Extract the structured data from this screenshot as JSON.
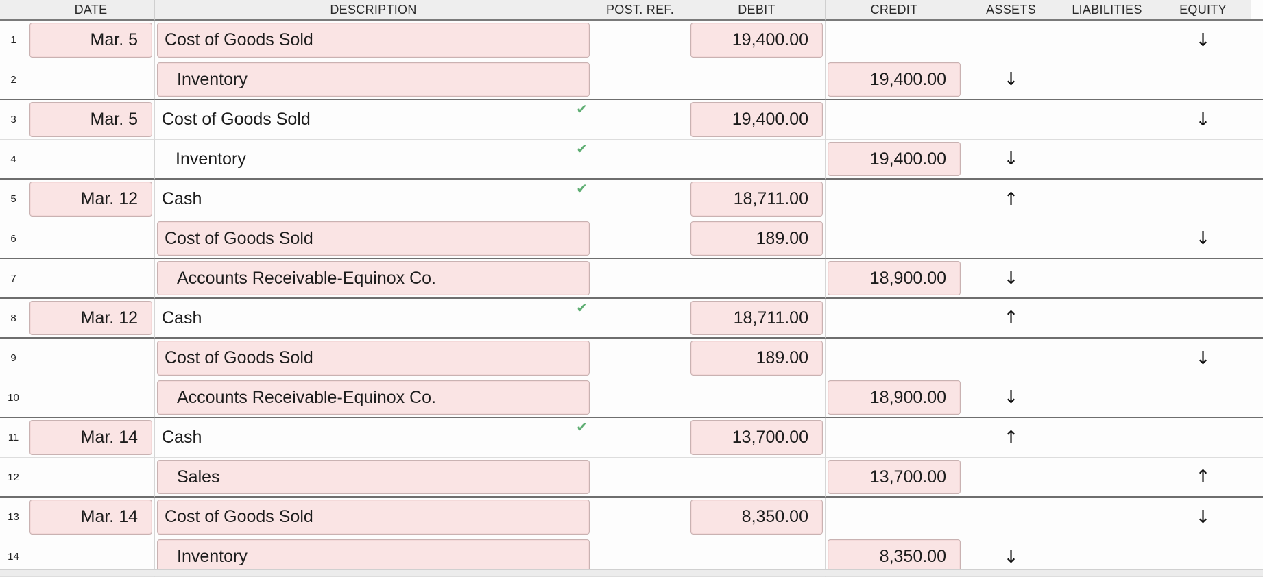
{
  "columns": [
    "",
    "DATE",
    "DESCRIPTION",
    "POST. REF.",
    "DEBIT",
    "CREDIT",
    "ASSETS",
    "LIABILITIES",
    "EQUITY",
    ""
  ],
  "rows": [
    {
      "num": "1",
      "date": "Mar. 5",
      "desc": "Cost of Goods Sold",
      "indent": false,
      "desc_input": true,
      "check": "",
      "debit": "19,400.00",
      "credit": "",
      "assets": "",
      "liabilities": "",
      "equity": "↓",
      "sep": false
    },
    {
      "num": "2",
      "date": "",
      "desc": "Inventory",
      "indent": true,
      "desc_input": true,
      "check": "",
      "debit": "",
      "credit": "19,400.00",
      "assets": "↓",
      "liabilities": "",
      "equity": "",
      "sep": true
    },
    {
      "num": "3",
      "date": "Mar. 5",
      "desc": "Cost of Goods Sold",
      "indent": false,
      "desc_input": false,
      "check": "✔",
      "debit": "19,400.00",
      "credit": "",
      "assets": "",
      "liabilities": "",
      "equity": "↓",
      "sep": false
    },
    {
      "num": "4",
      "date": "",
      "desc": "Inventory",
      "indent": true,
      "desc_input": false,
      "check": "✔",
      "debit": "",
      "credit": "19,400.00",
      "assets": "↓",
      "liabilities": "",
      "equity": "",
      "sep": true
    },
    {
      "num": "5",
      "date": "Mar. 12",
      "desc": "Cash",
      "indent": false,
      "desc_input": false,
      "check": "✔",
      "debit": "18,711.00",
      "credit": "",
      "assets": "↑",
      "liabilities": "",
      "equity": "",
      "sep": false
    },
    {
      "num": "6",
      "date": "",
      "desc": "Cost of Goods Sold",
      "indent": false,
      "desc_input": true,
      "check": "",
      "debit": "189.00",
      "credit": "",
      "assets": "",
      "liabilities": "",
      "equity": "↓",
      "sep": true
    },
    {
      "num": "7",
      "date": "",
      "desc": "Accounts Receivable-Equinox Co.",
      "indent": true,
      "desc_input": true,
      "check": "",
      "debit": "",
      "credit": "18,900.00",
      "assets": "↓",
      "liabilities": "",
      "equity": "",
      "sep": true
    },
    {
      "num": "8",
      "date": "Mar. 12",
      "desc": "Cash",
      "indent": false,
      "desc_input": false,
      "check": "✔",
      "debit": "18,711.00",
      "credit": "",
      "assets": "↑",
      "liabilities": "",
      "equity": "",
      "sep": true
    },
    {
      "num": "9",
      "date": "",
      "desc": "Cost of Goods Sold",
      "indent": false,
      "desc_input": true,
      "check": "",
      "debit": "189.00",
      "credit": "",
      "assets": "",
      "liabilities": "",
      "equity": "↓",
      "sep": false
    },
    {
      "num": "10",
      "date": "",
      "desc": "Accounts Receivable-Equinox Co.",
      "indent": true,
      "desc_input": true,
      "check": "",
      "debit": "",
      "credit": "18,900.00",
      "assets": "↓",
      "liabilities": "",
      "equity": "",
      "sep": true
    },
    {
      "num": "11",
      "date": "Mar. 14",
      "desc": "Cash",
      "indent": false,
      "desc_input": false,
      "check": "✔",
      "debit": "13,700.00",
      "credit": "",
      "assets": "↑",
      "liabilities": "",
      "equity": "",
      "sep": false
    },
    {
      "num": "12",
      "date": "",
      "desc": "Sales",
      "indent": true,
      "desc_input": true,
      "check": "",
      "debit": "",
      "credit": "13,700.00",
      "assets": "",
      "liabilities": "",
      "equity": "↑",
      "sep": true
    },
    {
      "num": "13",
      "date": "Mar. 14",
      "desc": "Cost of Goods Sold",
      "indent": false,
      "desc_input": true,
      "check": "",
      "debit": "8,350.00",
      "credit": "",
      "assets": "",
      "liabilities": "",
      "equity": "↓",
      "sep": false
    },
    {
      "num": "14",
      "date": "",
      "desc": "Inventory",
      "indent": true,
      "desc_input": true,
      "check": "",
      "debit": "",
      "credit": "8,350.00",
      "assets": "↓",
      "liabilities": "",
      "equity": "",
      "sep": false
    }
  ],
  "colors": {
    "input_fill": "#fae4e4",
    "check_green": "#5fae73",
    "header_bg": "#eeeeee"
  }
}
